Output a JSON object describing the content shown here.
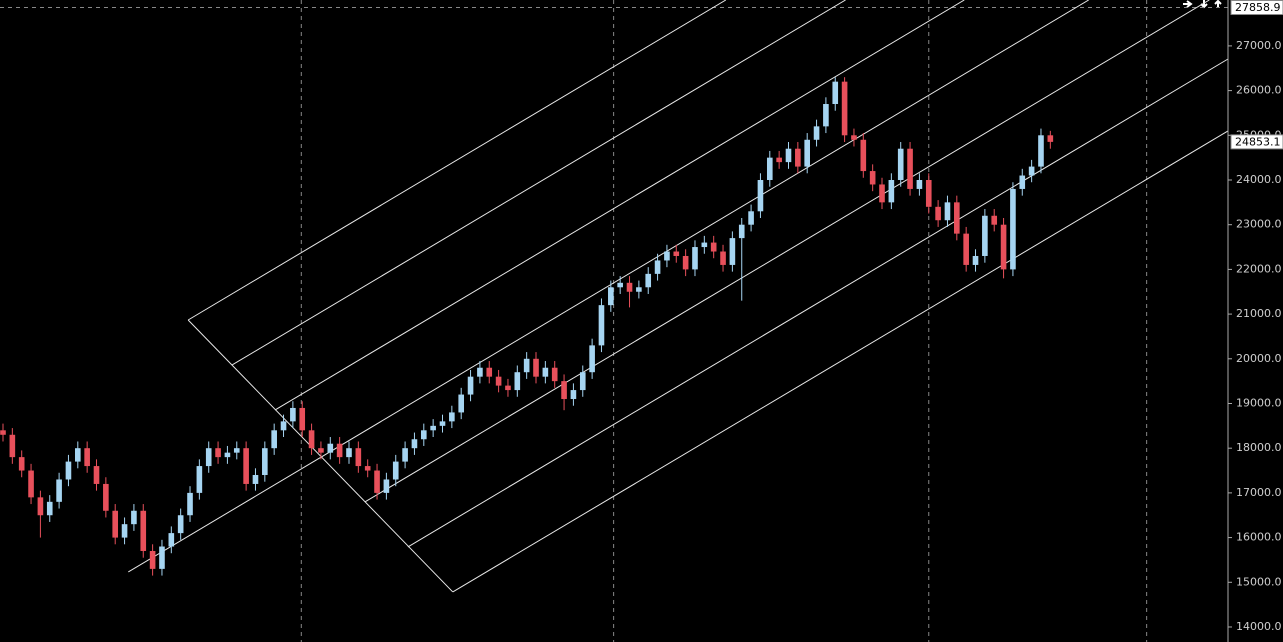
{
  "chart_data": {
    "type": "candlestick",
    "up_color": "#a6d5f2",
    "down_color": "#e8505b",
    "ylim": [
      13664,
      28027
    ],
    "xlim": [
      -0.32,
      131.0
    ],
    "yticks": [
      {
        "value": 14000,
        "label": "14000.0"
      },
      {
        "value": 15000,
        "label": "15000.0"
      },
      {
        "value": 16000,
        "label": "16000.0"
      },
      {
        "value": 17000,
        "label": "17000.0"
      },
      {
        "value": 18000,
        "label": "18000.0"
      },
      {
        "value": 19000,
        "label": "19000.0"
      },
      {
        "value": 20000,
        "label": "20000.0"
      },
      {
        "value": 21000,
        "label": "21000.0"
      },
      {
        "value": 22000,
        "label": "22000.0"
      },
      {
        "value": 23000,
        "label": "23000.0"
      },
      {
        "value": 24000,
        "label": "24000.0"
      },
      {
        "value": 25000,
        "label": "25000.0"
      },
      {
        "value": 26000,
        "label": "26000.0"
      },
      {
        "value": 27000,
        "label": "27000.0"
      }
    ],
    "xgrid": [
      31.9,
      65.3,
      99.0,
      122.3
    ],
    "open": [
      18400,
      18300,
      17800,
      17500,
      16900,
      16500,
      16800,
      17300,
      17700,
      18000,
      17600,
      17200,
      16600,
      16000,
      16300,
      16600,
      15700,
      15300,
      15800,
      16100,
      16500,
      17000,
      17600,
      18000,
      17800,
      17900,
      18000,
      17200,
      17400,
      18000,
      18400,
      18600,
      18900,
      18400,
      18000,
      17900,
      18100,
      17800,
      18000,
      17600,
      17500,
      17000,
      17300,
      17700,
      18000,
      18200,
      18400,
      18500,
      18600,
      18800,
      19200,
      19600,
      19800,
      19600,
      19400,
      19300,
      19700,
      20000,
      19600,
      19800,
      19500,
      19100,
      19300,
      19700,
      20300,
      21200,
      21600,
      21700,
      21500,
      21600,
      21900,
      22200,
      22400,
      22300,
      22000,
      22500,
      22600,
      22400,
      22100,
      22700,
      23000,
      23300,
      24000,
      24500,
      24400,
      24700,
      24300,
      24900,
      25200,
      25700,
      26200,
      25000,
      24900,
      24200,
      23900,
      23500,
      24000,
      24700,
      23800,
      24000,
      23400,
      23100,
      23500,
      22800,
      22100,
      22300,
      23200,
      23000,
      22000,
      23800,
      24100,
      24300,
      25000
    ],
    "high": [
      18550,
      18450,
      17950,
      17650,
      17050,
      16950,
      17450,
      17850,
      18150,
      18150,
      17750,
      17350,
      16750,
      16450,
      16750,
      16750,
      15850,
      15950,
      16250,
      16650,
      17150,
      17750,
      18150,
      18150,
      18050,
      18150,
      18150,
      17550,
      18150,
      18550,
      18750,
      19050,
      19050,
      18550,
      18150,
      18250,
      18250,
      18150,
      18150,
      17750,
      17650,
      17450,
      17850,
      18150,
      18350,
      18550,
      18650,
      18750,
      18950,
      19350,
      19750,
      19950,
      19950,
      19750,
      19550,
      19850,
      20150,
      20150,
      19950,
      19950,
      19650,
      19450,
      19850,
      20450,
      21350,
      21750,
      21850,
      21850,
      21750,
      22050,
      22350,
      22550,
      22550,
      22450,
      22650,
      22750,
      22750,
      22550,
      22850,
      23150,
      23450,
      24150,
      24650,
      24650,
      24850,
      24850,
      25050,
      25350,
      25850,
      26300,
      26300,
      25150,
      25050,
      24350,
      24050,
      24150,
      24850,
      24850,
      24150,
      24150,
      23550,
      23650,
      23650,
      22950,
      22450,
      23350,
      23350,
      23150,
      23950,
      24250,
      24450,
      25150,
      25100
    ],
    "low": [
      18150,
      17650,
      17350,
      16750,
      16000,
      16350,
      16650,
      17150,
      17550,
      17450,
      17050,
      16450,
      15850,
      15850,
      16150,
      15550,
      15150,
      15150,
      15650,
      15950,
      16350,
      16850,
      17450,
      17650,
      17650,
      17750,
      17050,
      17050,
      17250,
      17850,
      18250,
      18450,
      18250,
      17850,
      17750,
      17750,
      17650,
      17650,
      17450,
      17350,
      16850,
      16850,
      17150,
      17550,
      17850,
      18050,
      18250,
      18350,
      18450,
      18650,
      19050,
      19450,
      19450,
      19250,
      19150,
      19150,
      19550,
      19450,
      19450,
      19350,
      18850,
      18950,
      19150,
      19550,
      20150,
      21050,
      21450,
      21150,
      21350,
      21450,
      21750,
      22050,
      22150,
      21850,
      21850,
      22350,
      22250,
      21950,
      21950,
      21300,
      22850,
      23150,
      23850,
      24250,
      24250,
      24150,
      24150,
      24750,
      25050,
      25550,
      24850,
      24750,
      24050,
      23750,
      23350,
      23350,
      23850,
      23650,
      23650,
      23250,
      22950,
      22950,
      22650,
      21950,
      21950,
      22150,
      22850,
      21800,
      21850,
      23650,
      23950,
      24150,
      24700
    ],
    "close": [
      18300,
      17800,
      17500,
      16900,
      16500,
      16800,
      17300,
      17700,
      18000,
      17600,
      17200,
      16600,
      16000,
      16300,
      16600,
      15700,
      15300,
      15800,
      16100,
      16500,
      17000,
      17600,
      18000,
      17800,
      17900,
      18000,
      17200,
      17400,
      18000,
      18400,
      18600,
      18900,
      18400,
      18000,
      17900,
      18100,
      17800,
      18000,
      17600,
      17500,
      17000,
      17300,
      17700,
      18000,
      18200,
      18400,
      18500,
      18600,
      18800,
      19200,
      19600,
      19800,
      19600,
      19400,
      19300,
      19700,
      20000,
      19600,
      19800,
      19500,
      19100,
      19300,
      19700,
      20300,
      21200,
      21600,
      21700,
      21500,
      21600,
      21900,
      22200,
      22400,
      22300,
      22000,
      22500,
      22600,
      22400,
      22100,
      22700,
      23000,
      23300,
      24000,
      24500,
      24400,
      24700,
      24300,
      24900,
      25200,
      25700,
      26200,
      25000,
      24900,
      24200,
      23900,
      23500,
      24000,
      24700,
      23800,
      24000,
      23400,
      23100,
      23500,
      22800,
      22100,
      22300,
      23200,
      23000,
      22000,
      23800,
      24100,
      24300,
      25000,
      24853.1
    ],
    "trendlines": [
      {
        "x": [
          19.8,
          77.3
        ],
        "y": [
          20868,
          28027
        ]
      },
      {
        "x": [
          24.5,
          90.1
        ],
        "y": [
          19862,
          28027
        ]
      },
      {
        "x": [
          29.1,
          102.8
        ],
        "y": [
          18855,
          28027
        ]
      },
      {
        "x": [
          13.4,
          116.1
        ],
        "y": [
          15231,
          28027
        ]
      },
      {
        "x": [
          38.7,
          129.0
        ],
        "y": [
          16797,
          28027
        ]
      },
      {
        "x": [
          43.3,
          131.0
        ],
        "y": [
          15791,
          26707
        ]
      },
      {
        "x": [
          48.1,
          131.0
        ],
        "y": [
          14784,
          25097
        ]
      },
      {
        "x": [
          19.8,
          48.1
        ],
        "y": [
          20868,
          14784
        ]
      }
    ],
    "annotations": [
      {
        "value": 27858.9,
        "label": "27858.9"
      },
      {
        "value": 24853.1,
        "label": "24853.1"
      }
    ]
  }
}
